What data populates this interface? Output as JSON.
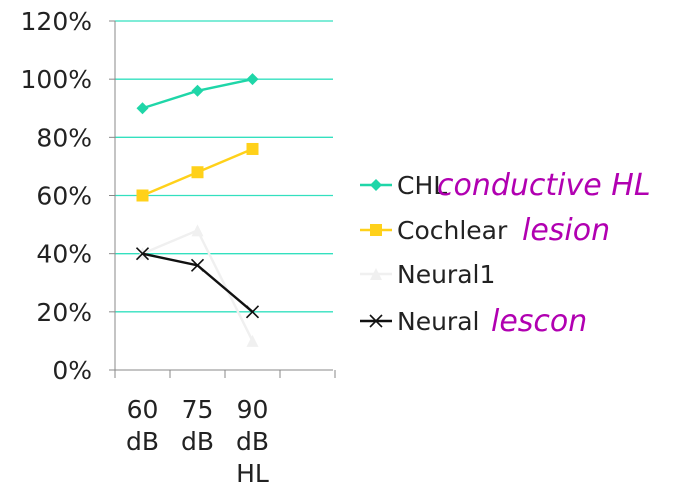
{
  "chart_data": {
    "type": "line",
    "categories": [
      "60 dB",
      "75 dB",
      "90 dB HL"
    ],
    "category_lines": [
      [
        "60",
        "dB"
      ],
      [
        "75",
        "dB"
      ],
      [
        "90",
        "dB",
        "HL"
      ]
    ],
    "y_ticks": [
      "0%",
      "20%",
      "40%",
      "60%",
      "80%",
      "100%",
      "120%"
    ],
    "ylim": [
      0,
      120
    ],
    "grid": true,
    "legend_position": "right",
    "series": [
      {
        "name": "CHL",
        "values": [
          90,
          96,
          100
        ],
        "color": "#1fd6a8",
        "marker": "diamond"
      },
      {
        "name": "Cochlear",
        "values": [
          60,
          68,
          76
        ],
        "color": "#ffd11a",
        "marker": "square"
      },
      {
        "name": "Neural1",
        "values": [
          40,
          48,
          10
        ],
        "color": "#f0f0f0",
        "marker": "triangle"
      },
      {
        "name": "Neural",
        "values": [
          40,
          36,
          20
        ],
        "color": "#111111",
        "marker": "x"
      }
    ],
    "annotations": [
      {
        "text": "conductive HL",
        "near_series": "CHL",
        "color": "#b100b1"
      },
      {
        "text": "lesion",
        "near_series": "Cochlear",
        "color": "#b100b1"
      },
      {
        "text": "lescon",
        "near_series": "Neural",
        "color": "#b100b1"
      }
    ],
    "grid_color": "#33e0bf"
  }
}
